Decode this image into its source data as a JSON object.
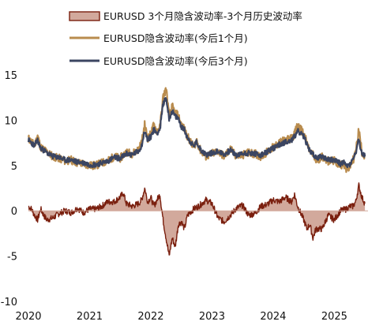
{
  "chart_data": {
    "type": "line",
    "title": "",
    "xlabel": "",
    "ylabel": "",
    "xlim": [
      2020.0,
      2025.55
    ],
    "ylim": [
      -10,
      15
    ],
    "yticks": [
      15,
      10,
      5,
      0,
      -5,
      -10
    ],
    "xticks": [
      2020,
      2021,
      2022,
      2023,
      2024,
      2025
    ],
    "grid": false,
    "legend_position": "top",
    "series": [
      {
        "name": "EURUSD 3个月隐含波动率-3个月历史波动率",
        "kind": "area",
        "color": "#7a1f0e",
        "fill": "#d2a99c",
        "x": [
          2020.0,
          2020.05,
          2020.1,
          2020.15,
          2020.2,
          2020.25,
          2020.3,
          2020.4,
          2020.5,
          2020.6,
          2020.7,
          2020.8,
          2020.9,
          2021.0,
          2021.1,
          2021.2,
          2021.25,
          2021.3,
          2021.4,
          2021.5,
          2021.55,
          2021.6,
          2021.7,
          2021.8,
          2021.85,
          2021.9,
          2021.95,
          2022.0,
          2022.05,
          2022.1,
          2022.15,
          2022.2,
          2022.25,
          2022.3,
          2022.35,
          2022.4,
          2022.45,
          2022.5,
          2022.55,
          2022.6,
          2022.7,
          2022.8,
          2022.9,
          2023.0,
          2023.1,
          2023.2,
          2023.3,
          2023.4,
          2023.5,
          2023.6,
          2023.7,
          2023.8,
          2023.9,
          2024.0,
          2024.1,
          2024.2,
          2024.3,
          2024.35,
          2024.4,
          2024.5,
          2024.55,
          2024.6,
          2024.65,
          2024.7,
          2024.8,
          2024.9,
          2025.0,
          2025.1,
          2025.2,
          2025.25,
          2025.3,
          2025.35,
          2025.4,
          2025.45,
          2025.5
        ],
        "values": [
          0.5,
          0.2,
          -0.5,
          -1.0,
          0.2,
          -0.5,
          -1.0,
          -0.8,
          -0.3,
          0.0,
          -0.2,
          0.3,
          -0.2,
          0.2,
          0.2,
          0.5,
          0.8,
          1.0,
          1.0,
          1.5,
          2.0,
          0.8,
          0.5,
          0.8,
          1.2,
          2.5,
          1.0,
          1.5,
          0.5,
          1.2,
          1.8,
          -1.0,
          -3.0,
          -5.0,
          -3.0,
          -4.0,
          -1.5,
          -1.2,
          -2.0,
          -0.5,
          0.2,
          0.6,
          1.2,
          0.8,
          -0.8,
          -1.2,
          -0.5,
          0.3,
          0.6,
          -0.5,
          -0.3,
          0.5,
          0.7,
          1.2,
          1.0,
          1.5,
          1.0,
          1.8,
          0.5,
          -1.0,
          -2.0,
          -1.5,
          -3.0,
          -2.0,
          -2.0,
          -0.5,
          -1.0,
          0.0,
          0.2,
          0.5,
          0.5,
          1.0,
          2.8,
          1.5,
          0.8
        ]
      },
      {
        "name": "EURUSD隐含波动率(今后1个月)",
        "kind": "line",
        "color": "#b98c4e",
        "x": [
          2020.0,
          2020.1,
          2020.15,
          2020.2,
          2020.25,
          2020.3,
          2020.4,
          2020.5,
          2020.6,
          2020.7,
          2020.8,
          2020.9,
          2021.0,
          2021.1,
          2021.2,
          2021.3,
          2021.4,
          2021.5,
          2021.6,
          2021.7,
          2021.8,
          2021.85,
          2021.9,
          2021.95,
          2022.0,
          2022.05,
          2022.1,
          2022.15,
          2022.2,
          2022.25,
          2022.3,
          2022.35,
          2022.4,
          2022.45,
          2022.5,
          2022.55,
          2022.6,
          2022.7,
          2022.75,
          2022.8,
          2022.9,
          2023.0,
          2023.1,
          2023.2,
          2023.3,
          2023.4,
          2023.5,
          2023.6,
          2023.7,
          2023.8,
          2023.9,
          2024.0,
          2024.1,
          2024.2,
          2024.3,
          2024.35,
          2024.4,
          2024.5,
          2024.55,
          2024.6,
          2024.65,
          2024.7,
          2024.8,
          2024.9,
          2025.0,
          2025.1,
          2025.15,
          2025.2,
          2025.25,
          2025.3,
          2025.35,
          2025.4,
          2025.45,
          2025.5
        ],
        "values": [
          8.0,
          7.2,
          8.3,
          7.0,
          6.8,
          6.5,
          6.0,
          5.8,
          5.5,
          5.6,
          5.3,
          5.2,
          5.0,
          5.0,
          5.3,
          5.5,
          6.0,
          5.8,
          6.5,
          6.3,
          6.8,
          7.5,
          9.5,
          8.0,
          8.5,
          9.5,
          8.8,
          9.2,
          12.5,
          13.5,
          10.5,
          11.5,
          10.8,
          10.5,
          9.5,
          9.0,
          8.2,
          7.0,
          7.8,
          6.8,
          6.0,
          6.3,
          6.6,
          6.0,
          6.8,
          6.0,
          6.2,
          6.4,
          6.3,
          6.0,
          6.5,
          7.0,
          7.5,
          7.8,
          8.0,
          8.5,
          9.5,
          8.5,
          7.5,
          6.5,
          6.2,
          5.5,
          6.0,
          5.5,
          5.5,
          5.0,
          5.3,
          4.5,
          4.8,
          5.5,
          6.5,
          9.0,
          6.5,
          6.0
        ]
      },
      {
        "name": "EURUSD隐含波动率(今后3个月)",
        "kind": "line",
        "color": "#3b4561",
        "x": [
          2020.0,
          2020.1,
          2020.15,
          2020.2,
          2020.25,
          2020.3,
          2020.4,
          2020.5,
          2020.6,
          2020.7,
          2020.8,
          2020.9,
          2021.0,
          2021.1,
          2021.2,
          2021.3,
          2021.4,
          2021.5,
          2021.6,
          2021.7,
          2021.8,
          2021.85,
          2021.9,
          2021.95,
          2022.0,
          2022.05,
          2022.1,
          2022.15,
          2022.2,
          2022.25,
          2022.3,
          2022.35,
          2022.4,
          2022.45,
          2022.5,
          2022.55,
          2022.6,
          2022.7,
          2022.75,
          2022.8,
          2022.9,
          2023.0,
          2023.1,
          2023.2,
          2023.3,
          2023.4,
          2023.5,
          2023.6,
          2023.7,
          2023.8,
          2023.9,
          2024.0,
          2024.1,
          2024.2,
          2024.3,
          2024.35,
          2024.4,
          2024.5,
          2024.55,
          2024.6,
          2024.65,
          2024.7,
          2024.8,
          2024.9,
          2025.0,
          2025.1,
          2025.15,
          2025.2,
          2025.25,
          2025.3,
          2025.35,
          2025.4,
          2025.45,
          2025.5
        ],
        "values": [
          7.8,
          7.2,
          7.8,
          6.9,
          6.7,
          6.4,
          6.0,
          5.9,
          5.6,
          5.6,
          5.4,
          5.3,
          5.1,
          5.1,
          5.3,
          5.5,
          5.9,
          5.8,
          6.3,
          6.2,
          6.6,
          7.2,
          8.8,
          7.8,
          8.2,
          9.0,
          8.6,
          9.0,
          11.8,
          12.5,
          10.2,
          11.0,
          10.4,
          10.2,
          9.3,
          8.9,
          8.1,
          7.1,
          7.6,
          6.9,
          6.2,
          6.4,
          6.6,
          6.2,
          6.7,
          6.1,
          6.3,
          6.4,
          6.3,
          6.1,
          6.5,
          6.9,
          7.3,
          7.6,
          7.8,
          8.2,
          8.8,
          8.2,
          7.4,
          6.6,
          6.3,
          5.8,
          6.0,
          5.7,
          5.6,
          5.2,
          5.4,
          4.9,
          5.1,
          5.6,
          6.4,
          7.8,
          6.3,
          6.0
        ]
      }
    ]
  }
}
